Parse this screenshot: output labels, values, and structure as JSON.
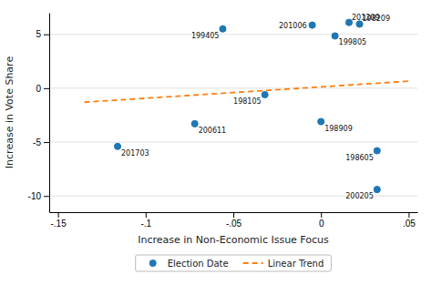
{
  "chart_data": {
    "type": "scatter",
    "xlabel": "Increase in Non-Economic Issue Focus",
    "ylabel": "Increase in Vote Share",
    "series": [
      {
        "name": "Election Date",
        "type": "scatter",
        "marker": "circle",
        "x": [
          -0.056,
          -0.005,
          0.016,
          0.022,
          0.008,
          -0.032,
          -0.072,
          0.0,
          -0.116,
          0.032,
          0.032
        ],
        "values": [
          5.5,
          5.85,
          6.1,
          5.95,
          4.85,
          -0.6,
          -3.3,
          -3.1,
          -5.4,
          -5.8,
          -9.4
        ],
        "labels": [
          "199405",
          "201006",
          "201209",
          "198209",
          "199805",
          "198105",
          "200611",
          "198909",
          "201703",
          "198605",
          "200205"
        ]
      },
      {
        "name": "Linear Trend",
        "type": "line",
        "line_style": "dashed",
        "x": [
          -0.135,
          0.05
        ],
        "values": [
          -1.3,
          0.65
        ]
      }
    ],
    "xlim": [
      -0.155,
      0.055
    ],
    "ylim": [
      -11.5,
      7.0
    ],
    "xticks": [
      {
        "value": -0.15,
        "label": "-.15"
      },
      {
        "value": -0.1,
        "label": "-.1"
      },
      {
        "value": -0.05,
        "label": "-.05"
      },
      0,
      {
        "value": 0.05,
        "label": ".05"
      }
    ],
    "yticks": [
      -10,
      -5,
      0,
      5
    ],
    "grid": "y",
    "legend": "bottom"
  }
}
